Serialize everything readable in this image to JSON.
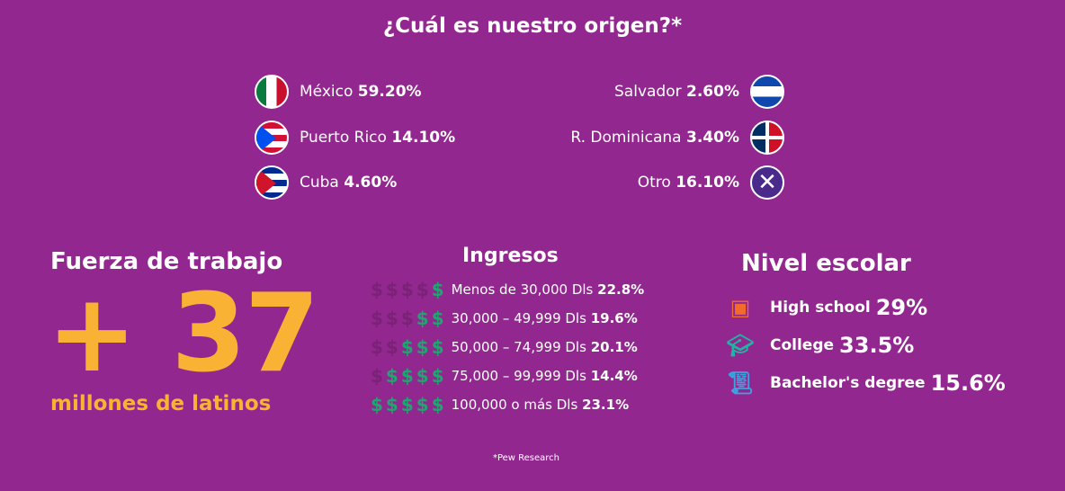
{
  "title": "¿Cuál es nuestro origen?*",
  "origins": [
    {
      "name": "México",
      "pct": "59.20%"
    },
    {
      "name": "Puerto Rico",
      "pct": "14.10%"
    },
    {
      "name": "Cuba",
      "pct": "4.60%"
    },
    {
      "name": "Salvador",
      "pct": "2.60%"
    },
    {
      "name": "R. Dominicana",
      "pct": "3.40%"
    },
    {
      "name": "Otro",
      "pct": "16.10%"
    }
  ],
  "workforce": {
    "title": "Fuerza de trabajo",
    "number": "+ 37",
    "subtitle": "millones de latinos"
  },
  "income": {
    "title": "Ingresos",
    "rows": [
      {
        "label": "Menos de 30,000 Dls",
        "pct": "22.8%",
        "level": 1
      },
      {
        "label": "30,000 – 49,999 Dls",
        "pct": "19.6%",
        "level": 2
      },
      {
        "label": "50,000 – 74,999 Dls",
        "pct": "20.1%",
        "level": 3
      },
      {
        "label": "75,000 – 99,999 Dls",
        "pct": "14.4%",
        "level": 4
      },
      {
        "label": "100,000 o más Dls",
        "pct": "23.1%",
        "level": 5
      }
    ]
  },
  "education": {
    "title": "Nivel escolar",
    "rows": [
      {
        "label": "High school",
        "pct": "29%"
      },
      {
        "label": "College",
        "pct": "33.5%"
      },
      {
        "label": "Bachelor's degree",
        "pct": "15.6%"
      }
    ]
  },
  "source": "*Pew Research",
  "colors": {
    "bg": "#92278f",
    "accent": "#f9b233",
    "money": "#1fa56f"
  }
}
